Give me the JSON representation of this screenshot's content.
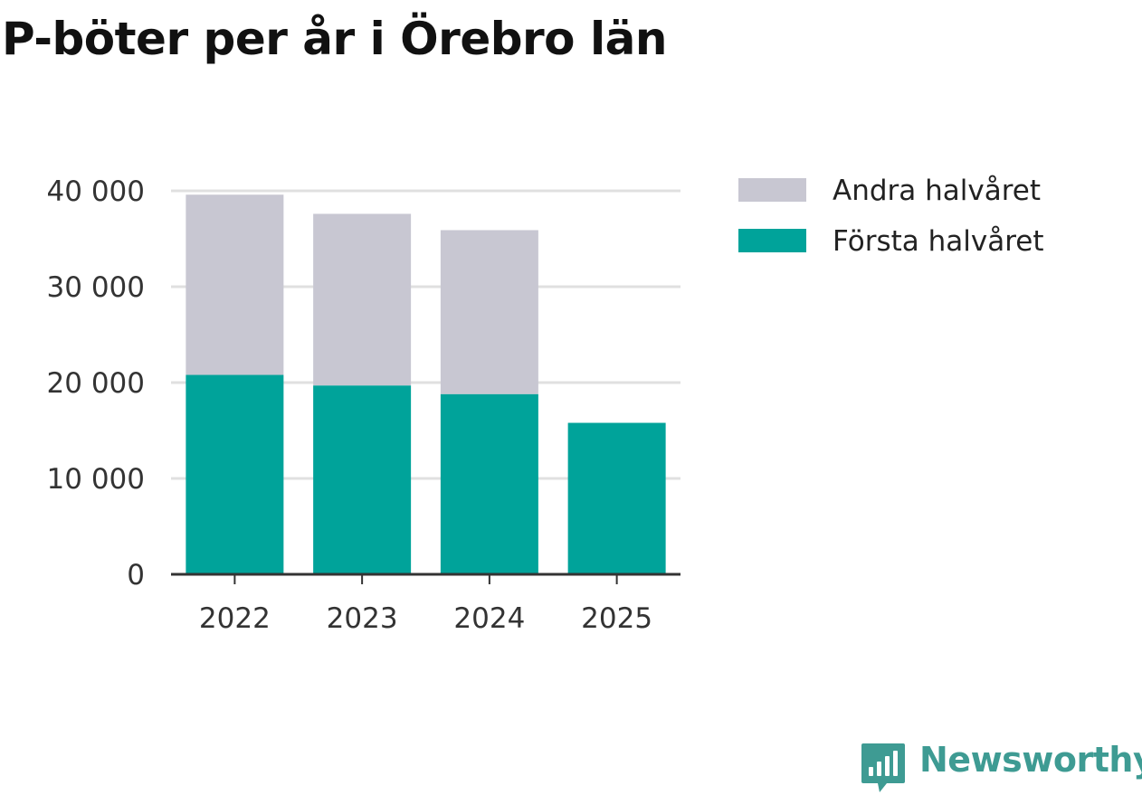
{
  "title": "P-böter per år i Örebro län",
  "brand": {
    "name": "Newsworthy",
    "color": "#3e9b93",
    "icon": "newsworthy-logo-icon"
  },
  "colors": {
    "first_half": "#00a39a",
    "second_half": "#c8c7d2",
    "grid": "#e0e0e0",
    "axis": "#333333"
  },
  "chart_data": {
    "type": "bar",
    "stacked": true,
    "title": "P-böter per år i Örebro län",
    "xlabel": "",
    "ylabel": "",
    "categories": [
      "2022",
      "2023",
      "2024",
      "2025"
    ],
    "series": [
      {
        "name": "Första halvåret",
        "values": [
          20800,
          19700,
          18800,
          15800
        ]
      },
      {
        "name": "Andra halvåret",
        "values": [
          18800,
          17900,
          17100,
          null
        ]
      }
    ],
    "ylim": [
      0,
      40000
    ],
    "yticks": [
      0,
      10000,
      20000,
      30000,
      40000
    ],
    "ytick_labels": [
      "0",
      "10 000",
      "20 000",
      "30 000",
      "40 000"
    ],
    "grid": true,
    "legend_position": "top-right",
    "legend": [
      "Andra halvåret",
      "Första halvåret"
    ]
  }
}
